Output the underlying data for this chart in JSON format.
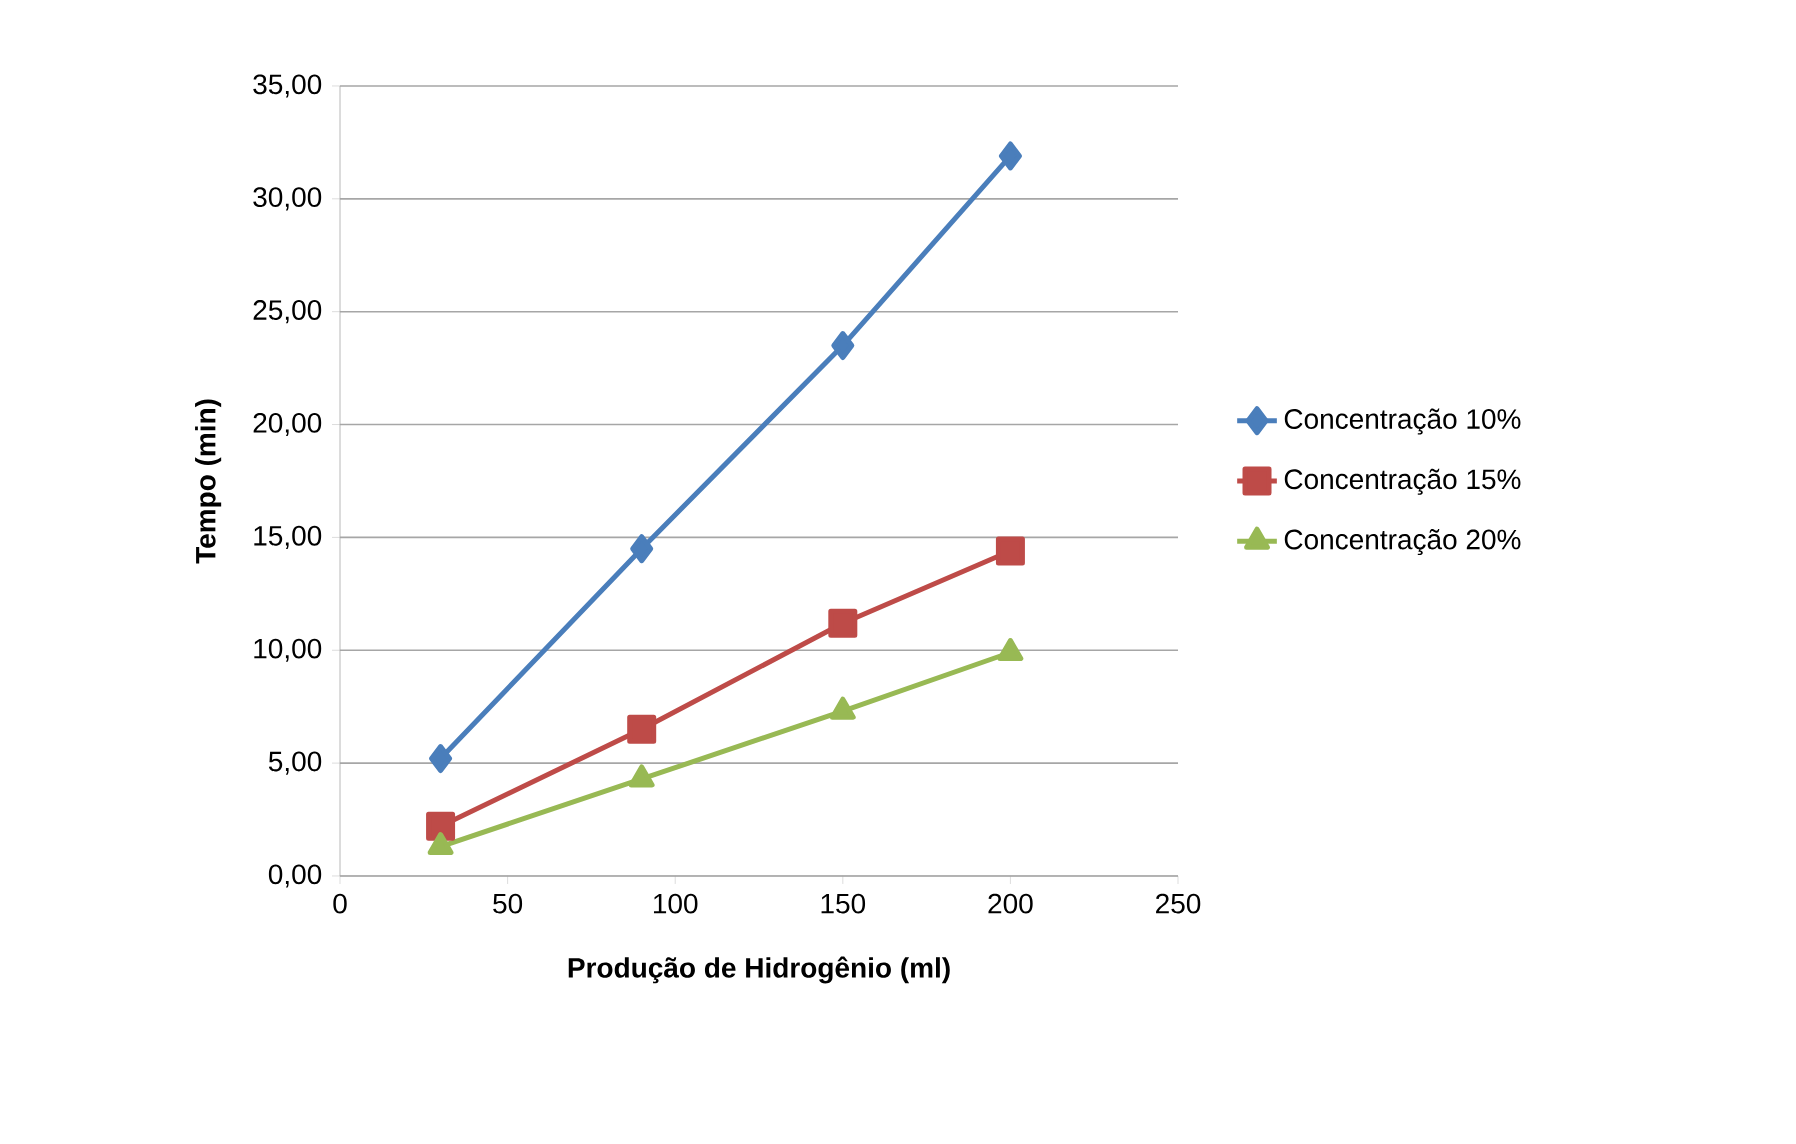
{
  "chart_data": {
    "type": "line",
    "xlabel": "Produção de Hidrogênio (ml)",
    "ylabel": "Tempo (min)",
    "x": [
      30,
      90,
      150,
      200
    ],
    "series": [
      {
        "name": "Concentração 10%",
        "color": "#4a7ebb",
        "marker": "diamond",
        "values": [
          5.2,
          14.5,
          23.5,
          31.9
        ]
      },
      {
        "name": "Concentração 15%",
        "color": "#be4b48",
        "marker": "square",
        "values": [
          2.2,
          6.5,
          11.2,
          14.4
        ]
      },
      {
        "name": "Concentração 20%",
        "color": "#98b954",
        "marker": "triangle",
        "values": [
          1.3,
          4.3,
          7.3,
          9.9
        ]
      }
    ],
    "xlim": [
      0,
      250
    ],
    "xticks": [
      0,
      50,
      100,
      150,
      200,
      250
    ],
    "ylim": [
      0,
      35
    ],
    "yticks": [
      {
        "value": 0,
        "label": "0,00"
      },
      {
        "value": 5,
        "label": "5,00"
      },
      {
        "value": 10,
        "label": "10,00"
      },
      {
        "value": 15,
        "label": "15,00"
      },
      {
        "value": 20,
        "label": "20,00"
      },
      {
        "value": 25,
        "label": "25,00"
      },
      {
        "value": 30,
        "label": "30,00"
      },
      {
        "value": 35,
        "label": "35,00"
      }
    ],
    "grid": "y",
    "legend": "right",
    "line_style": "solid"
  }
}
